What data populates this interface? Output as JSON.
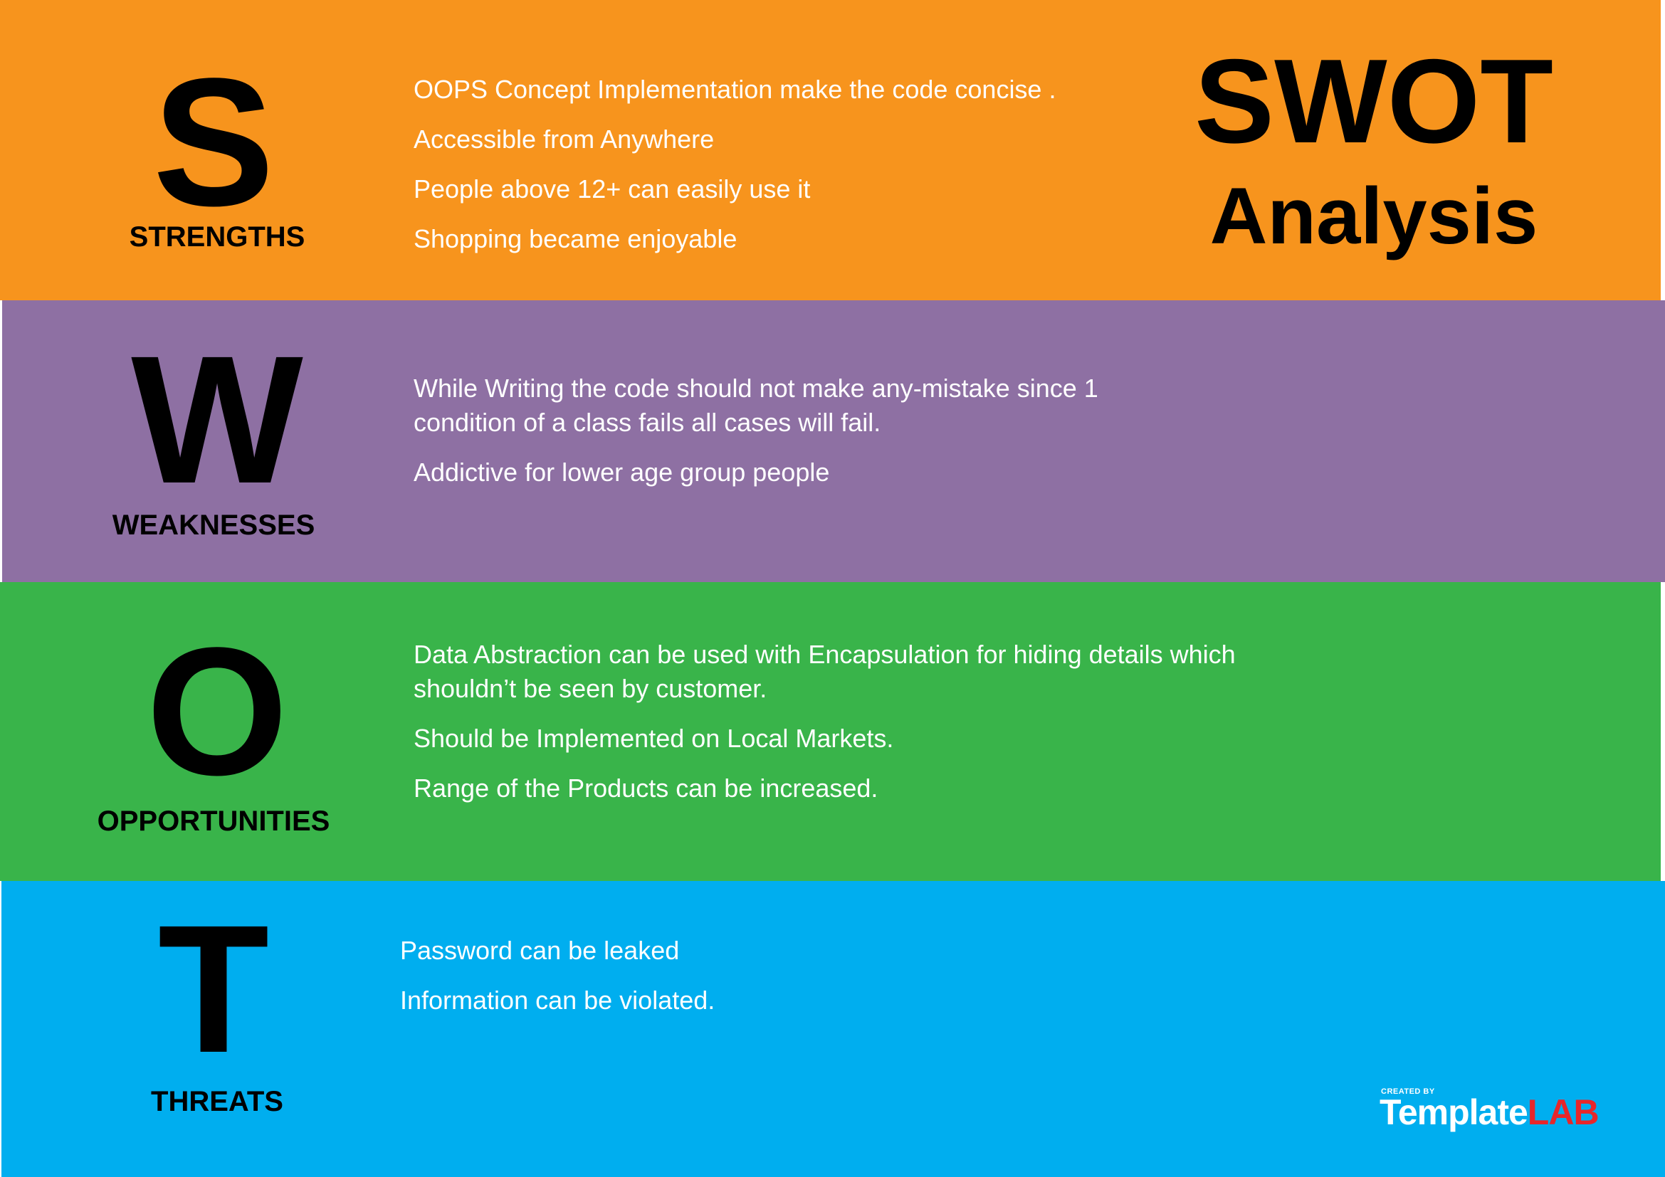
{
  "title": {
    "line1": "SWOT",
    "line2": "Analysis"
  },
  "strengths": {
    "letter": "S",
    "label": "STRENGTHS",
    "color": "#f7941d",
    "items": [
      "OOPS Concept Implementation make the code concise .",
      "Accessible from Anywhere",
      "People above 12+ can easily use it",
      "Shopping became enjoyable"
    ]
  },
  "weaknesses": {
    "letter": "W",
    "label": "WEAKNESSES",
    "color": "#8e70a3",
    "items": [
      "While Writing the code should not make any-mistake since 1 condition of a class fails all cases will fail.",
      "Addictive for lower age group people"
    ]
  },
  "opportunities": {
    "letter": "O",
    "label": "OPPORTUNITIES",
    "color": "#39b44a",
    "items": [
      "Data Abstraction can be used with Encapsulation for hiding details which shouldn’t be seen by customer.",
      "Should be Implemented on Local Markets.",
      "Range of the Products can be increased."
    ]
  },
  "threats": {
    "letter": "T",
    "label": "THREATS",
    "color": "#00aeef",
    "items": [
      "Password can be leaked",
      "Information can be violated."
    ]
  },
  "logo": {
    "created_by": "CREATED BY",
    "word_a": "Template",
    "word_b": "LAB",
    "accent": "#e8262a"
  }
}
